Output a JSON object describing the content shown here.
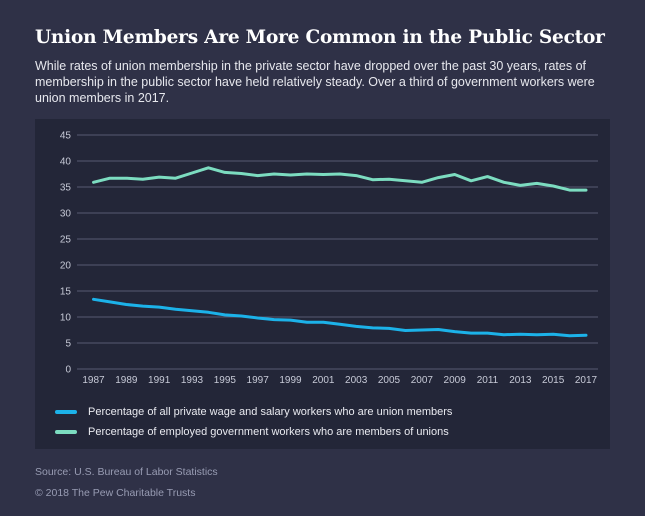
{
  "header": {
    "title": "Union Members Are More Common in the Public Sector",
    "subtitle": "While rates of union membership in the private sector have dropped over the past 30 years, rates of membership in the public sector have held relatively steady. Over a third of government workers were union members in 2017."
  },
  "theme": {
    "page_bg": "#2f3147",
    "panel_bg": "#232638",
    "grid_color": "#575b72",
    "axis_label_color": "#c7cad7",
    "title_color": "#ffffff",
    "legend_text_color": "#e9eaf0",
    "footer_text_color": "#989cb3",
    "private_line_color": "#1cb2e9",
    "public_line_color": "#7cdcc0"
  },
  "chart_data": {
    "type": "line",
    "title": "",
    "xlabel": "",
    "ylabel": "",
    "x": [
      1987,
      1988,
      1989,
      1990,
      1991,
      1992,
      1993,
      1994,
      1995,
      1996,
      1997,
      1998,
      1999,
      2000,
      2001,
      2002,
      2003,
      2004,
      2005,
      2006,
      2007,
      2008,
      2009,
      2010,
      2011,
      2012,
      2013,
      2014,
      2015,
      2016,
      2017
    ],
    "xtick_labels": [
      "1987",
      "1989",
      "1991",
      "1993",
      "1995",
      "1997",
      "1999",
      "2001",
      "2003",
      "2005",
      "2007",
      "2009",
      "2011",
      "2013",
      "2015",
      "2017"
    ],
    "ylim": [
      0,
      45
    ],
    "ytick_step": 5,
    "ytick_labels": [
      "0",
      "5",
      "10",
      "15",
      "20",
      "25",
      "30",
      "35",
      "40",
      "45"
    ],
    "grid": "horizontal",
    "legend_position": "bottom-left",
    "series": [
      {
        "name": "Percentage of all private wage and salary workers who are union members",
        "color": "#1cb2e9",
        "values": [
          13.4,
          12.9,
          12.4,
          12.1,
          11.9,
          11.5,
          11.2,
          10.9,
          10.4,
          10.2,
          9.8,
          9.5,
          9.4,
          9.0,
          9.0,
          8.6,
          8.2,
          7.9,
          7.8,
          7.4,
          7.5,
          7.6,
          7.2,
          6.9,
          6.9,
          6.6,
          6.7,
          6.6,
          6.7,
          6.4,
          6.5
        ]
      },
      {
        "name": "Percentage of employed government workers who are members of unions",
        "color": "#7cdcc0",
        "values": [
          35.9,
          36.7,
          36.7,
          36.5,
          36.9,
          36.7,
          37.7,
          38.7,
          37.8,
          37.6,
          37.2,
          37.5,
          37.3,
          37.5,
          37.4,
          37.5,
          37.2,
          36.4,
          36.5,
          36.2,
          35.9,
          36.8,
          37.4,
          36.2,
          37.0,
          35.9,
          35.3,
          35.7,
          35.2,
          34.4,
          34.4
        ]
      }
    ]
  },
  "footer": {
    "source": "Source: U.S. Bureau of Labor Statistics",
    "copyright": "© 2018 The Pew Charitable Trusts"
  }
}
